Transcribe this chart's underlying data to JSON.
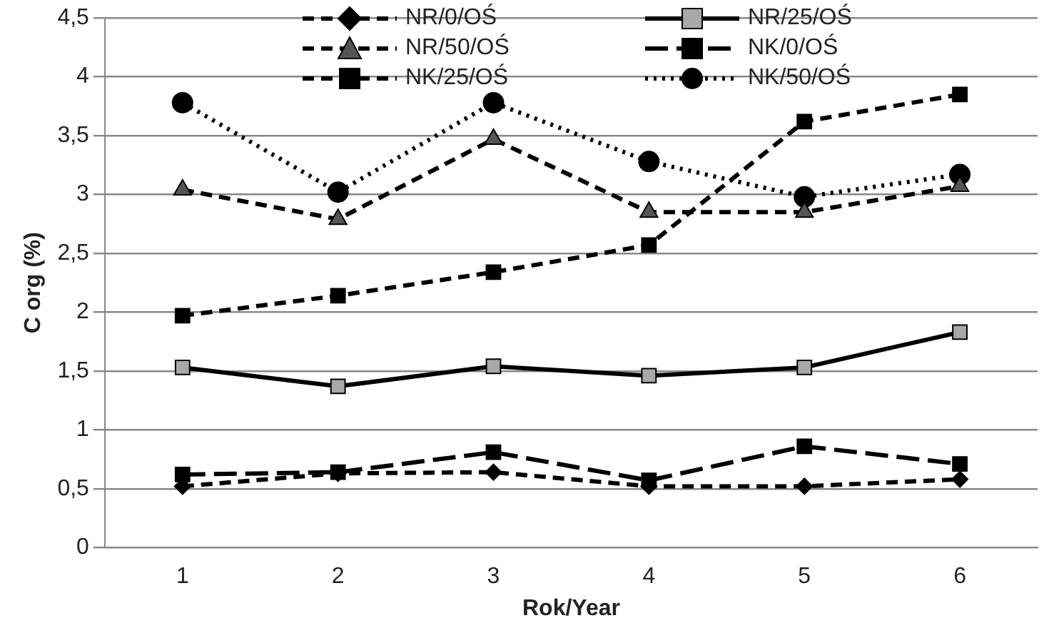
{
  "chart_data": {
    "type": "line",
    "xlabel": "Rok/Year",
    "ylabel": "C org (%)",
    "categories": [
      "1",
      "2",
      "3",
      "4",
      "5",
      "6"
    ],
    "series": [
      {
        "name": "NR/0/OŚ",
        "color": "#000000",
        "marker": "diamond",
        "line_style": "dashed",
        "values": [
          0.52,
          0.63,
          0.64,
          0.52,
          0.52,
          0.58
        ]
      },
      {
        "name": "NR/25/OŚ",
        "color": "#000000",
        "marker": "square",
        "line_style": "solid",
        "values": [
          1.53,
          1.37,
          1.54,
          1.46,
          1.53,
          1.83
        ]
      },
      {
        "name": "NR/50/OŚ",
        "color": "#000000",
        "marker": "triangle",
        "line_style": "dashed",
        "values": [
          3.04,
          2.79,
          3.47,
          2.85,
          2.85,
          3.07
        ]
      },
      {
        "name": "NK/0/OŚ",
        "color": "#000000",
        "marker": "square",
        "line_style": "longdash",
        "values": [
          0.62,
          0.64,
          0.81,
          0.57,
          0.86,
          0.71
        ]
      },
      {
        "name": "NK/25/OŚ",
        "color": "#000000",
        "marker": "square",
        "line_style": "dashed",
        "values": [
          1.97,
          2.14,
          2.34,
          2.57,
          3.62,
          3.85
        ]
      },
      {
        "name": "NK/50/OŚ",
        "color": "#000000",
        "marker": "circle",
        "line_style": "dotted",
        "values": [
          3.78,
          3.02,
          3.78,
          3.28,
          2.98,
          3.17
        ]
      }
    ],
    "ylim": [
      0,
      4.5
    ],
    "yticks": [
      {
        "value": 0,
        "label": "0"
      },
      {
        "value": 0.5,
        "label": "0,5"
      },
      {
        "value": 1,
        "label": "1"
      },
      {
        "value": 1.5,
        "label": "1,5"
      },
      {
        "value": 2,
        "label": "2"
      },
      {
        "value": 2.5,
        "label": "2,5"
      },
      {
        "value": 3,
        "label": "3"
      },
      {
        "value": 3.5,
        "label": "3,5"
      },
      {
        "value": 4,
        "label": "4"
      },
      {
        "value": 4.5,
        "label": "4,5"
      }
    ],
    "grid": "y",
    "legend": "top"
  }
}
